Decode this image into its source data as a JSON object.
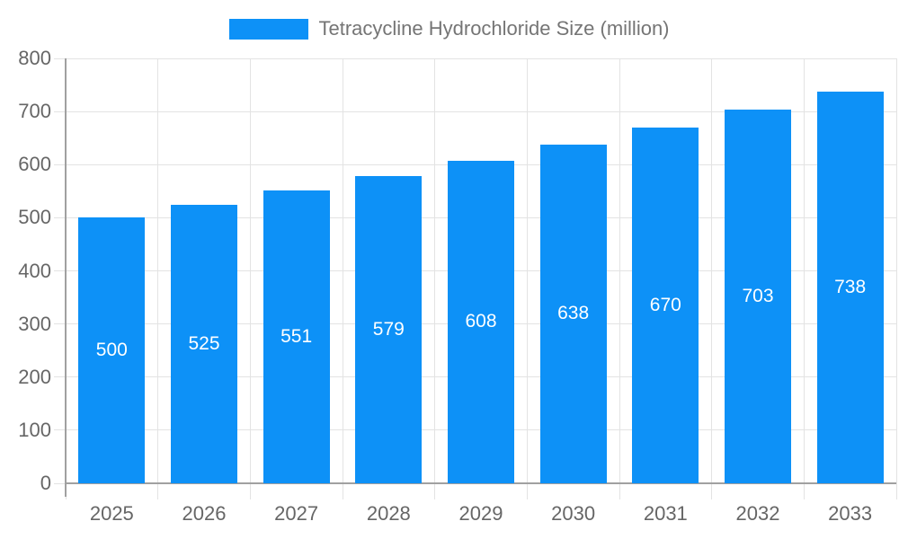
{
  "legend": {
    "label": "Tetracycline Hydrochloride Size (million)"
  },
  "chart_data": {
    "type": "bar",
    "title": "Tetracycline Hydrochloride Size (million)",
    "categories": [
      "2025",
      "2026",
      "2027",
      "2028",
      "2029",
      "2030",
      "2031",
      "2032",
      "2033"
    ],
    "values": [
      500,
      525,
      551,
      579,
      608,
      638,
      670,
      703,
      738
    ],
    "series": [
      {
        "name": "Tetracycline Hydrochloride Size (million)",
        "values": [
          500,
          525,
          551,
          579,
          608,
          638,
          670,
          703,
          738
        ]
      }
    ],
    "xlabel": "",
    "ylabel": "",
    "ylim": [
      0,
      800
    ],
    "yticks": [
      0,
      100,
      200,
      300,
      400,
      500,
      600,
      700,
      800
    ],
    "grid": true,
    "legend_position": "top-center",
    "bar_labels_inside": true,
    "colors": {
      "bar": "#0d91f7",
      "bar_label": "#ffffff",
      "axis": "#a0a0a0",
      "grid": "#e3e3e3",
      "tick_label": "#666666",
      "legend_text": "#757575",
      "background": "#ffffff"
    }
  }
}
